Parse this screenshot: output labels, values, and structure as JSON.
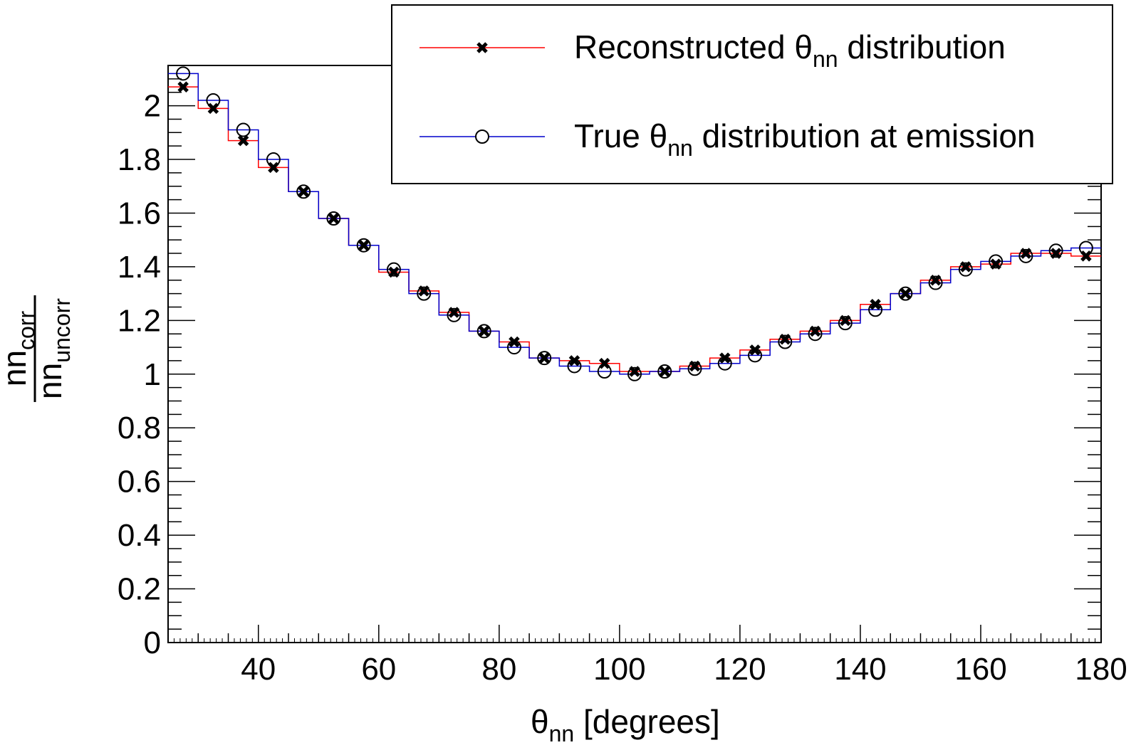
{
  "chart_data": {
    "type": "line",
    "title": "",
    "x_axis": {
      "label": "θ",
      "label_sub": "nn",
      "label_suffix": " [degrees]",
      "range": [
        25,
        180
      ],
      "ticks": [
        40,
        60,
        80,
        100,
        120,
        140,
        160,
        180
      ]
    },
    "y_axis": {
      "label_num": "nn",
      "label_num_sub": "corr",
      "label_den": "nn",
      "label_den_sub": "uncorr",
      "range": [
        0,
        2.15
      ],
      "ticks": [
        0,
        0.2,
        0.4,
        0.6,
        0.8,
        1,
        1.2,
        1.4,
        1.6,
        1.8,
        2
      ]
    },
    "bin_width": 5,
    "x": [
      27.5,
      32.5,
      37.5,
      42.5,
      47.5,
      52.5,
      57.5,
      62.5,
      67.5,
      72.5,
      77.5,
      82.5,
      87.5,
      92.5,
      97.5,
      102.5,
      107.5,
      112.5,
      117.5,
      122.5,
      127.5,
      132.5,
      137.5,
      142.5,
      147.5,
      152.5,
      157.5,
      162.5,
      167.5,
      172.5,
      177.5
    ],
    "series": [
      {
        "name": "Reconstructed θ",
        "name_sub": "nn",
        "name_suffix": " distribution",
        "color": "#ff0000",
        "marker": "x",
        "values": [
          2.07,
          1.99,
          1.87,
          1.77,
          1.68,
          1.58,
          1.48,
          1.38,
          1.31,
          1.23,
          1.16,
          1.12,
          1.06,
          1.05,
          1.04,
          1.01,
          1.01,
          1.03,
          1.06,
          1.09,
          1.13,
          1.16,
          1.2,
          1.26,
          1.3,
          1.35,
          1.4,
          1.41,
          1.45,
          1.45,
          1.44
        ]
      },
      {
        "name": "True θ",
        "name_sub": "nn",
        "name_suffix": " distribution at emission",
        "color": "#0000cc",
        "marker": "o",
        "values": [
          2.12,
          2.02,
          1.91,
          1.8,
          1.68,
          1.58,
          1.48,
          1.39,
          1.3,
          1.22,
          1.16,
          1.1,
          1.06,
          1.03,
          1.01,
          1.0,
          1.01,
          1.02,
          1.04,
          1.07,
          1.12,
          1.15,
          1.19,
          1.24,
          1.3,
          1.34,
          1.39,
          1.42,
          1.44,
          1.46,
          1.47
        ]
      }
    ],
    "legend_position": "top-right",
    "grid": false
  }
}
